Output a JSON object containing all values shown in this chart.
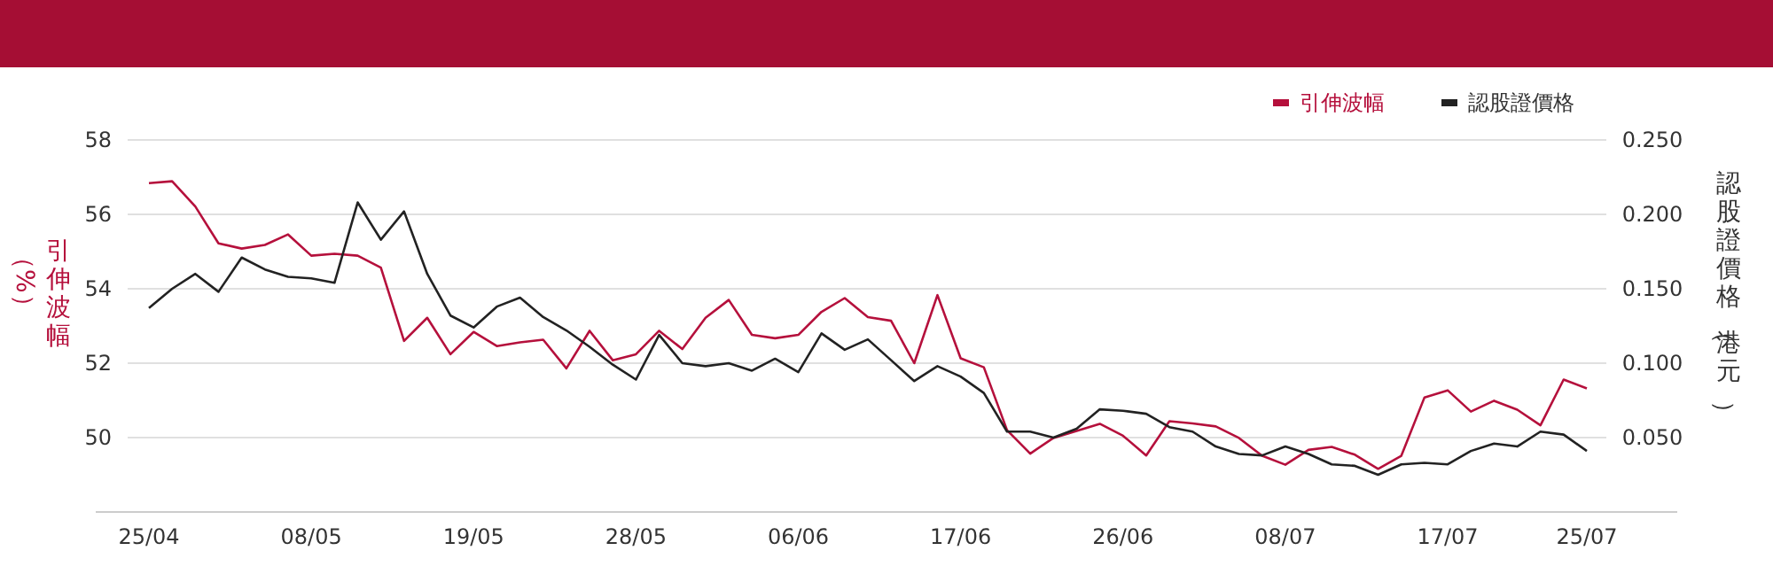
{
  "chart_data": {
    "type": "line",
    "categories": [
      "25/04",
      null,
      null,
      null,
      null,
      null,
      null,
      "08/05",
      null,
      null,
      null,
      null,
      null,
      null,
      "19/05",
      null,
      null,
      null,
      null,
      null,
      null,
      "28/05",
      null,
      null,
      null,
      null,
      null,
      null,
      "06/06",
      null,
      null,
      null,
      null,
      null,
      null,
      "17/06",
      null,
      null,
      null,
      null,
      null,
      null,
      "26/06",
      null,
      null,
      null,
      null,
      null,
      null,
      "08/07",
      null,
      null,
      null,
      null,
      null,
      null,
      "17/07",
      null,
      null,
      null,
      null,
      null,
      "25/07"
    ],
    "ylabel": "引伸波幅（%）",
    "y2label": "認股證價格（港元）",
    "series": [
      {
        "name": "引伸波幅",
        "color": "#b5103c",
        "values": [
          56.84,
          56.89,
          56.21,
          55.22,
          55.08,
          55.18,
          55.46,
          54.89,
          54.94,
          54.89,
          54.57,
          52.6,
          53.22,
          52.24,
          52.84,
          52.46,
          52.56,
          52.63,
          51.86,
          52.87,
          52.08,
          52.24,
          52.87,
          52.38,
          53.22,
          53.7,
          52.76,
          52.67,
          52.76,
          53.38,
          53.75,
          53.24,
          53.14,
          52.0,
          53.83,
          52.13,
          51.89,
          50.2,
          49.57,
          49.99,
          50.18,
          50.37,
          50.05,
          49.52,
          50.44,
          50.38,
          50.3,
          49.99,
          49.51,
          49.27,
          49.67,
          49.75,
          49.54,
          49.16,
          49.51,
          51.08,
          51.27,
          50.7,
          50.99,
          50.75,
          50.33,
          51.56,
          51.32
        ]
      },
      {
        "name": "認股證價格",
        "color": "#222222",
        "axis": "y2",
        "values": [
          0.137,
          0.15,
          0.16,
          0.148,
          0.171,
          0.163,
          0.158,
          0.157,
          0.154,
          0.208,
          0.183,
          0.202,
          0.16,
          0.132,
          0.124,
          0.138,
          0.144,
          0.131,
          0.122,
          0.111,
          0.099,
          0.089,
          0.119,
          0.1,
          0.098,
          0.1,
          0.095,
          0.103,
          0.094,
          0.12,
          0.109,
          0.116,
          0.102,
          0.088,
          0.098,
          0.091,
          0.08,
          0.054,
          0.054,
          0.05,
          0.056,
          0.069,
          0.068,
          0.066,
          0.057,
          0.054,
          0.044,
          0.039,
          0.038,
          0.044,
          0.039,
          0.032,
          0.031,
          0.025,
          0.032,
          0.033,
          0.032,
          0.041,
          0.046,
          0.044,
          0.054,
          0.052,
          0.041
        ]
      }
    ],
    "ylim": [
      48,
      58
    ],
    "yticks": [
      50,
      52,
      54,
      56,
      58
    ],
    "y2lim": [
      0,
      0.25
    ],
    "y2ticks": [
      {
        "value": 0.05,
        "label": "0.050"
      },
      {
        "value": 0.1,
        "label": "0.100"
      },
      {
        "value": 0.15,
        "label": "0.150"
      },
      {
        "value": 0.2,
        "label": "0.200"
      },
      {
        "value": 0.25,
        "label": "0.250"
      }
    ],
    "grid": "y",
    "legend": "top right"
  }
}
